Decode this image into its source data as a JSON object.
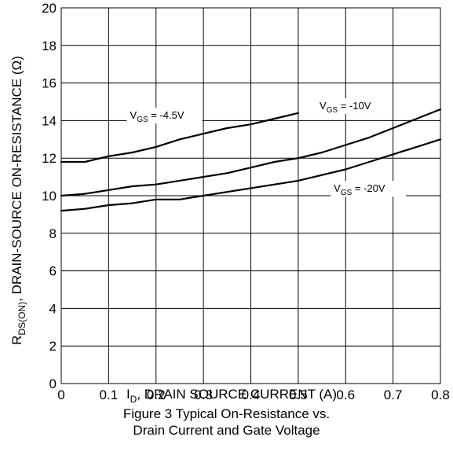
{
  "chart_data": {
    "type": "line",
    "title": "",
    "xlabel": {
      "main": "I",
      "sub": "D",
      "rest": ", DRAIN SOURCE CURRENT (A)"
    },
    "ylabel": {
      "main": "R",
      "sub": "DS(ON)",
      "rest": ", DRAIN-SOURCE ON-RESISTANCE (Ω)"
    },
    "xlim": [
      0,
      0.8
    ],
    "ylim": [
      0,
      20
    ],
    "grid": true,
    "x_ticks": [
      "0",
      "0.1",
      "0.2",
      "0.3",
      "0.4",
      "0.5",
      "0.6",
      "0.7",
      "0.8"
    ],
    "y_ticks": [
      "0",
      "2",
      "4",
      "6",
      "8",
      "10",
      "12",
      "14",
      "16",
      "18",
      "20"
    ],
    "series": [
      {
        "name": "VGS = -4.5V",
        "label": {
          "main": "V",
          "sub": "GS",
          "rest": " = -4.5V"
        },
        "x": [
          0.0,
          0.05,
          0.1,
          0.15,
          0.2,
          0.25,
          0.3,
          0.35,
          0.4,
          0.45,
          0.5
        ],
        "y": [
          11.8,
          11.8,
          12.1,
          12.3,
          12.6,
          13.0,
          13.3,
          13.6,
          13.8,
          14.1,
          14.4
        ]
      },
      {
        "name": "VGS = -10V",
        "label": {
          "main": "V",
          "sub": "GS",
          "rest": " = -10V"
        },
        "x": [
          0.0,
          0.05,
          0.1,
          0.15,
          0.2,
          0.25,
          0.3,
          0.35,
          0.4,
          0.45,
          0.5,
          0.55,
          0.6,
          0.65,
          0.7,
          0.75,
          0.8
        ],
        "y": [
          10.0,
          10.1,
          10.3,
          10.5,
          10.6,
          10.8,
          11.0,
          11.2,
          11.5,
          11.8,
          12.0,
          12.3,
          12.7,
          13.1,
          13.6,
          14.1,
          14.6
        ]
      },
      {
        "name": "VGS = -20V",
        "label": {
          "main": "V",
          "sub": "GS",
          "rest": " = -20V"
        },
        "x": [
          0.0,
          0.05,
          0.1,
          0.15,
          0.2,
          0.25,
          0.3,
          0.35,
          0.4,
          0.45,
          0.5,
          0.55,
          0.6,
          0.65,
          0.7,
          0.75,
          0.8
        ],
        "y": [
          9.2,
          9.3,
          9.5,
          9.6,
          9.8,
          9.8,
          10.0,
          10.2,
          10.4,
          10.6,
          10.8,
          11.1,
          11.4,
          11.8,
          12.2,
          12.6,
          13.0
        ]
      }
    ]
  },
  "caption": {
    "line1": "Figure 3 Typical On-Resistance vs.",
    "line2": "Drain Current and Gate Voltage"
  }
}
